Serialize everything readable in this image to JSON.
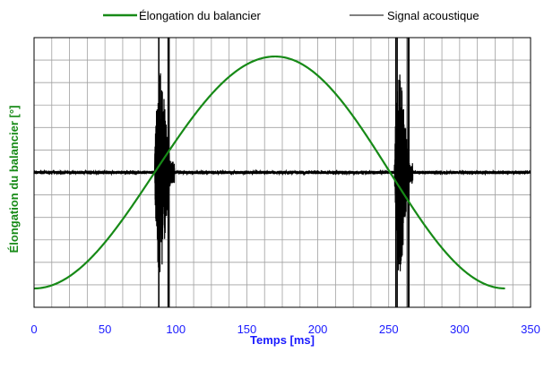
{
  "chart_data": {
    "type": "line",
    "xlabel": "Temps [ms]",
    "ylabel": "Élongation du balancier [°]",
    "xlim": [
      0,
      350
    ],
    "x_ticks": [
      0,
      50,
      100,
      150,
      200,
      250,
      300,
      350
    ],
    "x_tick_labels": [
      "0",
      "50",
      "100",
      "150",
      "200",
      "250",
      "300",
      "350"
    ],
    "y_ticks_labeled": false,
    "grid": true,
    "legend_position": "top",
    "series": [
      {
        "name": "Élongation du balancier",
        "color": "#178a17",
        "kind": "half-sine",
        "x_start": 0,
        "x_end": 332,
        "x_peak": 170,
        "baseline_level": 0.07,
        "peak_level": 0.93
      },
      {
        "name": "Signal acoustique",
        "color": "#000000",
        "kind": "acoustic",
        "x_start": 0,
        "x_end": 350,
        "baseline_level": 0.5,
        "bursts": [
          {
            "x_start": 85,
            "x_end": 99,
            "min_level": 0.0,
            "max_level": 1.0
          },
          {
            "x_start": 254,
            "x_end": 267,
            "min_level": 0.0,
            "max_level": 1.0
          }
        ]
      }
    ]
  }
}
